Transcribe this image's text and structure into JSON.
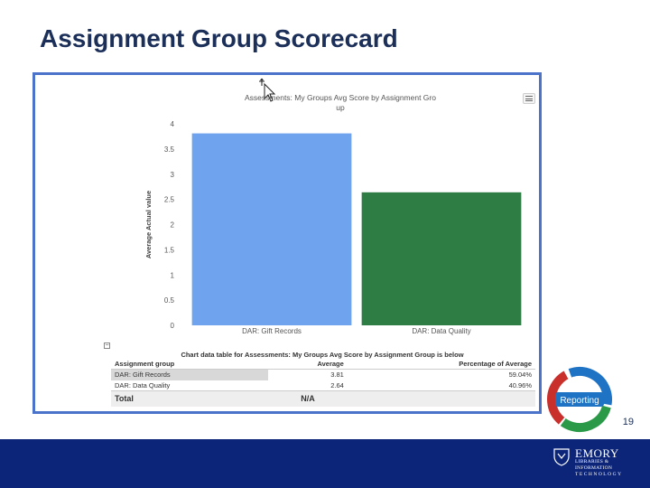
{
  "slide": {
    "title": "Assignment Group Scorecard",
    "page_number": "19"
  },
  "report": {
    "chart_title_line1": "Assessments: My Groups Avg Score by Assignment Gro",
    "chart_title_line2": "up",
    "table_caption": "Chart data table for Assessments: My Groups Avg Score by Assignment Group is below",
    "table_toggle": "−",
    "table": {
      "headers": [
        "Assignment group",
        "Average",
        "Percentage of Average"
      ],
      "rows": [
        [
          "DAR: Gift Records",
          "3.81",
          "59.04%"
        ],
        [
          "DAR: Data Quality",
          "2.64",
          "40.96%"
        ]
      ],
      "total": [
        "Total",
        "N/A",
        ""
      ]
    }
  },
  "chart_data": {
    "type": "bar",
    "title": "Assessments: My Groups Avg Score by Assignment Group",
    "categories": [
      "DAR: Gift Records",
      "DAR: Data Quality"
    ],
    "values": [
      3.81,
      2.64
    ],
    "ylabel": "Average Actual value",
    "xlabel": "",
    "ylim": [
      0,
      4
    ],
    "yticks": [
      "0",
      "0.5",
      "1",
      "1.5",
      "2",
      "2.5",
      "3",
      "3.5",
      "4"
    ],
    "colors": [
      "#6fa3ee",
      "#2e7d45"
    ],
    "grid": false
  },
  "badge": {
    "label": "Reporting",
    "colors": [
      "#1f73c4",
      "#2a9a48",
      "#c9302c"
    ]
  },
  "footer": {
    "color": "#0c2578",
    "logo_name": "EMORY",
    "logo_line1": "LIBRARIES &",
    "logo_line2": "INFORMATION",
    "logo_line3": "TECHNOLOGY"
  }
}
